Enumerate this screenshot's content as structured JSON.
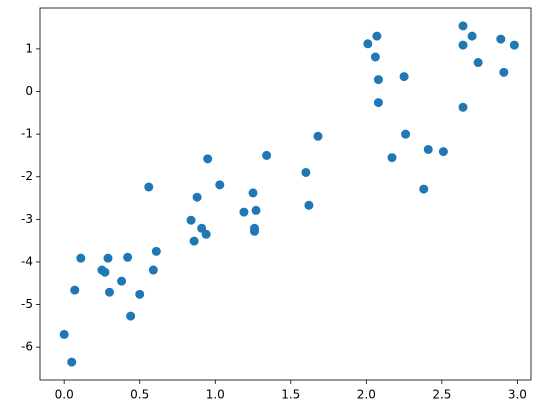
{
  "chart_data": {
    "type": "scatter",
    "color": "#1f77b4",
    "x": [
      0.0,
      0.05,
      0.07,
      0.11,
      0.25,
      0.27,
      0.29,
      0.3,
      0.38,
      0.42,
      0.44,
      0.5,
      0.56,
      0.59,
      0.61,
      0.84,
      0.86,
      0.88,
      0.91,
      0.94,
      0.95,
      1.03,
      1.19,
      1.25,
      1.26,
      1.26,
      1.27,
      1.34,
      1.6,
      1.62,
      1.68,
      2.01,
      2.06,
      2.07,
      2.08,
      2.08,
      2.17,
      2.25,
      2.26,
      2.38,
      2.41,
      2.51,
      2.64,
      2.64,
      2.64,
      2.7,
      2.74,
      2.89,
      2.91,
      2.98
    ],
    "values": [
      -5.7,
      -6.35,
      -4.66,
      -3.91,
      -4.19,
      -4.24,
      -3.91,
      -4.71,
      -4.45,
      -3.89,
      -5.27,
      -4.76,
      -2.24,
      -4.19,
      -3.75,
      -3.02,
      -3.51,
      -2.48,
      -3.21,
      -3.35,
      -1.58,
      -2.19,
      -2.83,
      -2.38,
      -3.21,
      -3.28,
      -2.79,
      -1.5,
      -1.9,
      -2.67,
      -1.05,
      1.12,
      0.81,
      1.3,
      0.28,
      -0.26,
      -1.55,
      0.35,
      -1.0,
      -2.29,
      -1.36,
      -1.41,
      1.54,
      1.09,
      -0.37,
      1.3,
      0.68,
      1.23,
      0.45,
      1.09
    ],
    "xlim": [
      -0.16,
      3.09
    ],
    "ylim": [
      -6.77,
      1.96
    ],
    "xticks": [
      {
        "value": 0,
        "label": "0.0"
      },
      0.5,
      {
        "value": 1,
        "label": "1.0"
      },
      1.5,
      {
        "value": 2,
        "label": "2.0"
      },
      2.5,
      {
        "value": 3,
        "label": "3.0"
      }
    ],
    "yticks": [
      -6,
      -5,
      -4,
      -3,
      -2,
      -1,
      0,
      1
    ]
  }
}
